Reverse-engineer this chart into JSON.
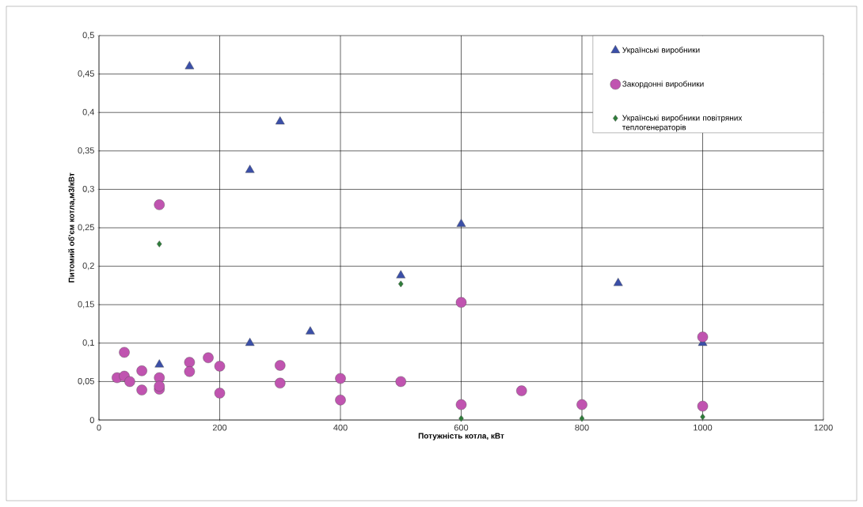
{
  "chart_data": {
    "type": "scatter",
    "xlabel": "Потужність котла, кВт",
    "ylabel": "Питомий об'єм котла,м3/кВт",
    "xlim": [
      0,
      1200
    ],
    "xticks": [
      0,
      200,
      400,
      600,
      800,
      1000,
      1200
    ],
    "ylim": [
      0,
      0.5
    ],
    "yticks": [
      {
        "value": 0,
        "label": "0"
      },
      {
        "value": 0.05,
        "label": "0,05"
      },
      {
        "value": 0.1,
        "label": "0,1"
      },
      {
        "value": 0.15,
        "label": "0,15"
      },
      {
        "value": 0.2,
        "label": "0,2"
      },
      {
        "value": 0.25,
        "label": "0,25"
      },
      {
        "value": 0.3,
        "label": "0,3"
      },
      {
        "value": 0.35,
        "label": "0,35"
      },
      {
        "value": 0.4,
        "label": "0,4"
      },
      {
        "value": 0.45,
        "label": "0,45"
      },
      {
        "value": 0.5,
        "label": "0,5"
      }
    ],
    "grid": true,
    "legend": "top right",
    "series": [
      {
        "name": "Українські виробники",
        "color": "#3b4fa8",
        "marker": "triangle",
        "x": [
          100,
          150,
          250,
          250,
          300,
          350,
          500,
          600,
          860,
          1000
        ],
        "values": [
          0.072,
          0.46,
          0.325,
          0.1,
          0.388,
          0.115,
          0.188,
          0.255,
          0.178,
          0.1
        ]
      },
      {
        "name": "Закордонні виробники",
        "color": "#c054b0",
        "marker": "circle",
        "x": [
          30,
          42,
          42,
          51,
          71,
          71,
          100,
          100,
          100,
          150,
          150,
          181,
          200,
          200,
          300,
          300,
          400,
          400,
          500,
          600,
          600,
          700,
          800,
          1000,
          1000,
          100
        ],
        "values": [
          0.055,
          0.088,
          0.057,
          0.05,
          0.064,
          0.039,
          0.055,
          0.04,
          0.28,
          0.075,
          0.063,
          0.081,
          0.07,
          0.035,
          0.071,
          0.048,
          0.054,
          0.026,
          0.05,
          0.153,
          0.02,
          0.038,
          0.02,
          0.108,
          0.018,
          0.044
        ]
      },
      {
        "name": "Українські виробники повітряних теплогенераторів",
        "color": "#2e7d3a",
        "marker": "diamond",
        "x": [
          100,
          500,
          600,
          800,
          1000
        ],
        "values": [
          0.229,
          0.177,
          0.002,
          0.002,
          0.004
        ]
      }
    ]
  }
}
